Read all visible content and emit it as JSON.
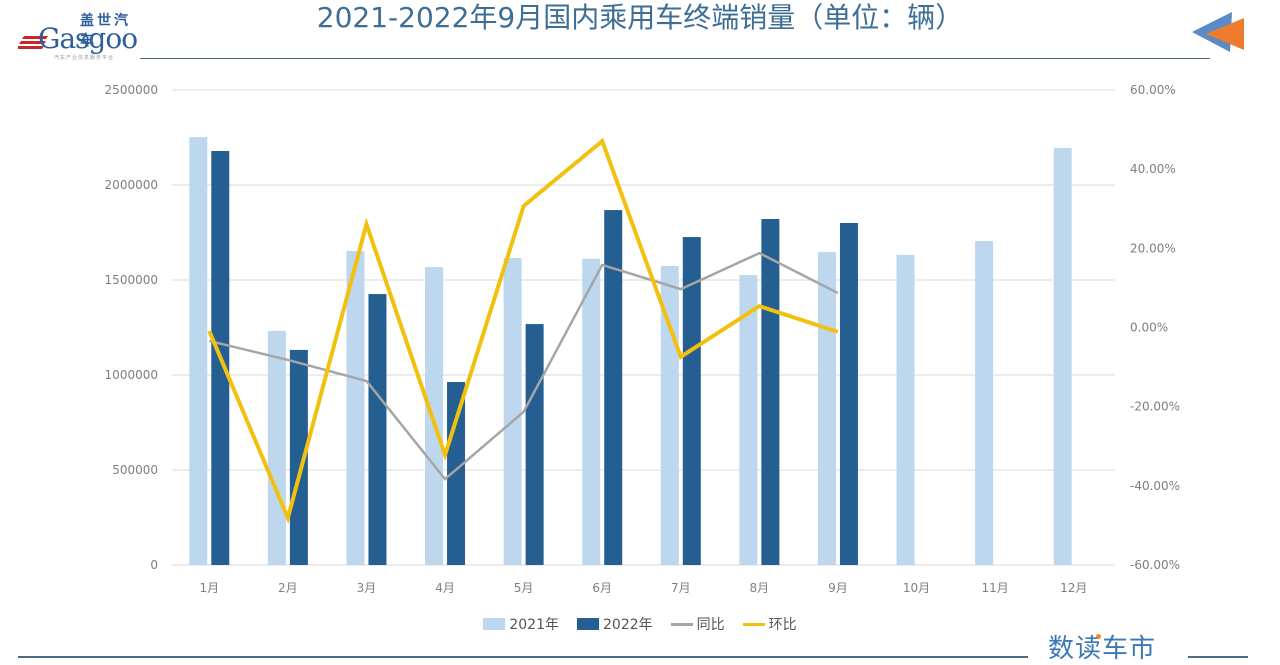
{
  "logo": {
    "cn": "盖世汽车",
    "en": "Gasgoo",
    "sub": "汽车产业信息服务平台"
  },
  "title": "2021-2022年9月国内乘用车终端销量（单位：辆）",
  "brand": "数读车市",
  "colors": {
    "bar2021": "#bdd7ee",
    "bar2022": "#255e91",
    "yoy": "#a5a5a5",
    "mom": "#f2c10f",
    "title": "#3d6e95",
    "grid": "#d9d9d9"
  },
  "legend": [
    {
      "label": "2021年",
      "kind": "box",
      "color": "#bdd7ee"
    },
    {
      "label": "2022年",
      "kind": "box",
      "color": "#255e91"
    },
    {
      "label": "同比",
      "kind": "line",
      "color": "#a5a5a5"
    },
    {
      "label": "环比",
      "kind": "line",
      "color": "#f2c10f"
    }
  ],
  "chart_data": {
    "type": "bar",
    "title": "2021-2022年9月国内乘用车终端销量（单位：辆）",
    "xlabel": "",
    "ylabel": "",
    "categories": [
      "1月",
      "2月",
      "3月",
      "4月",
      "5月",
      "6月",
      "7月",
      "8月",
      "9月",
      "10月",
      "11月",
      "12月"
    ],
    "ylim": [
      0,
      2500000
    ],
    "yticks": [
      "0",
      "500000",
      "1000000",
      "1500000",
      "2000000",
      "2500000"
    ],
    "y2lim": [
      -60,
      60
    ],
    "y2ticks": [
      "-60.00%",
      "-40.00%",
      "-20.00%",
      "0.00%",
      "20.00%",
      "40.00%",
      "60.00%"
    ],
    "grid": true,
    "legend_position": "bottom",
    "series": [
      {
        "name": "2021年",
        "type": "bar",
        "axis": "left",
        "values": [
          2252000,
          1232000,
          1653000,
          1568000,
          1616000,
          1611000,
          1574000,
          1526000,
          1647000,
          1632000,
          1705000,
          2195000
        ]
      },
      {
        "name": "2022年",
        "type": "bar",
        "axis": "left",
        "values": [
          2179000,
          1132000,
          1426000,
          963000,
          1268000,
          1868000,
          1726000,
          1821000,
          1800000,
          null,
          null,
          null
        ]
      },
      {
        "name": "同比",
        "type": "line",
        "axis": "right",
        "unit": "%",
        "values": [
          -3.4,
          -8.2,
          -13.5,
          -38.3,
          -21.3,
          15.8,
          9.7,
          18.8,
          8.7,
          null,
          null,
          null
        ]
      },
      {
        "name": "环比",
        "type": "line",
        "axis": "right",
        "unit": "%",
        "values": [
          -0.9,
          -48.1,
          26.1,
          -32.2,
          30.7,
          47.1,
          -7.4,
          5.4,
          -1.1,
          null,
          null,
          null
        ]
      }
    ]
  }
}
